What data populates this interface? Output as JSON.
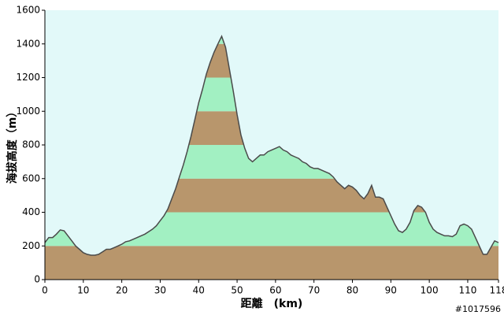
{
  "chart_data": {
    "type": "area",
    "y_label": "海拔高度（m）",
    "x_label": "距離　(km)",
    "watermark": "#1017596",
    "x": [
      0,
      1,
      2,
      3,
      4,
      5,
      6,
      7,
      8,
      9,
      10,
      11,
      12,
      13,
      14,
      15,
      16,
      17,
      18,
      19,
      20,
      21,
      22,
      23,
      24,
      25,
      26,
      27,
      28,
      29,
      30,
      31,
      32,
      33,
      34,
      35,
      36,
      37,
      38,
      39,
      40,
      41,
      42,
      43,
      44,
      45,
      46,
      47,
      48,
      49,
      50,
      51,
      52,
      53,
      54,
      55,
      56,
      57,
      58,
      59,
      60,
      61,
      62,
      63,
      64,
      65,
      66,
      67,
      68,
      69,
      70,
      71,
      72,
      73,
      74,
      75,
      76,
      77,
      78,
      79,
      80,
      81,
      82,
      83,
      84,
      85,
      86,
      87,
      88,
      89,
      90,
      91,
      92,
      93,
      94,
      95,
      96,
      97,
      98,
      99,
      100,
      101,
      102,
      103,
      104,
      105,
      106,
      107,
      108,
      109,
      110,
      111,
      112,
      113,
      114,
      115,
      116,
      117,
      118
    ],
    "series": [
      {
        "name": "海拔高度",
        "color": "#4a4a4a",
        "values": [
          220,
          250,
          250,
          270,
          295,
          290,
          260,
          230,
          200,
          180,
          160,
          150,
          145,
          145,
          150,
          165,
          180,
          180,
          190,
          200,
          210,
          225,
          230,
          240,
          250,
          260,
          270,
          285,
          300,
          320,
          350,
          380,
          420,
          480,
          540,
          610,
          680,
          760,
          850,
          950,
          1050,
          1130,
          1220,
          1290,
          1350,
          1400,
          1445,
          1380,
          1250,
          1120,
          980,
          860,
          780,
          720,
          700,
          720,
          740,
          740,
          760,
          770,
          780,
          790,
          770,
          760,
          740,
          730,
          720,
          700,
          690,
          670,
          660,
          660,
          650,
          640,
          630,
          610,
          580,
          560,
          540,
          560,
          550,
          530,
          500,
          480,
          510,
          560,
          490,
          490,
          480,
          430,
          380,
          330,
          290,
          280,
          300,
          340,
          410,
          440,
          430,
          400,
          340,
          300,
          280,
          270,
          260,
          260,
          255,
          270,
          320,
          330,
          320,
          300,
          250,
          200,
          150,
          150,
          190,
          230,
          220
        ]
      }
    ],
    "band_colors": [
      "#b8966c",
      "#a2f0c2"
    ],
    "background": "#e2f9f9",
    "xlim": [
      0,
      118
    ],
    "xticks": [
      0,
      10,
      20,
      30,
      40,
      50,
      60,
      70,
      80,
      90,
      100,
      110,
      118
    ],
    "ylim": [
      0,
      1600
    ],
    "yticks": [
      0,
      200,
      400,
      600,
      800,
      1000,
      1200,
      1400,
      1600
    ]
  }
}
